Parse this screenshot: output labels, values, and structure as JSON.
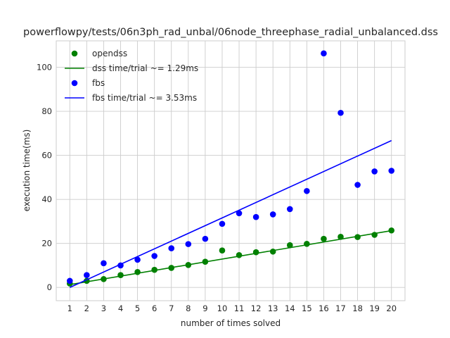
{
  "chart_data": {
    "type": "scatter",
    "title": "powerflowpy/tests/06n3ph_rad_unbal/06node_threephase_radial_unbalanced.dss",
    "xlabel": "number of times solved",
    "ylabel": "execution time(ms)",
    "xlim": [
      0.2,
      20.8
    ],
    "ylim": [
      -6,
      112
    ],
    "xticks": [
      1,
      2,
      3,
      4,
      5,
      6,
      7,
      8,
      9,
      10,
      11,
      12,
      13,
      14,
      15,
      16,
      17,
      18,
      19,
      20
    ],
    "yticks": [
      0,
      20,
      40,
      60,
      80,
      100
    ],
    "grid": true,
    "legend_position": "top-left",
    "series": [
      {
        "name": "opendss",
        "kind": "scatter",
        "color": "#008000",
        "x": [
          1,
          2,
          3,
          4,
          5,
          6,
          7,
          8,
          9,
          10,
          11,
          12,
          13,
          14,
          15,
          16,
          17,
          18,
          19,
          20
        ],
        "y": [
          1.8,
          3.0,
          3.8,
          5.6,
          7.0,
          8.0,
          8.9,
          10.2,
          11.7,
          16.8,
          14.7,
          16.0,
          16.3,
          19.2,
          19.8,
          22.1,
          23.0,
          22.9,
          23.9,
          25.9
        ]
      },
      {
        "name": "dss time/trial ~= 1.29ms",
        "kind": "line",
        "color": "#008000",
        "x": [
          1,
          20
        ],
        "y": [
          1.29,
          25.8
        ]
      },
      {
        "name": "fbs",
        "kind": "scatter",
        "color": "#0000ff",
        "x": [
          1,
          2,
          3,
          4,
          5,
          6,
          7,
          8,
          9,
          10,
          11,
          12,
          13,
          14,
          15,
          16,
          17,
          18,
          19,
          20
        ],
        "y": [
          3.0,
          5.6,
          11.0,
          10.0,
          12.6,
          14.3,
          17.8,
          19.7,
          22.1,
          28.9,
          33.7,
          32.0,
          33.2,
          35.6,
          43.8,
          106.3,
          79.3,
          46.6,
          52.7,
          53.0
        ]
      },
      {
        "name": "fbs time/trial ~= 3.53ms",
        "kind": "line",
        "color": "#0000ff",
        "x": [
          1,
          20
        ],
        "y": [
          0.0,
          66.7
        ]
      }
    ]
  }
}
